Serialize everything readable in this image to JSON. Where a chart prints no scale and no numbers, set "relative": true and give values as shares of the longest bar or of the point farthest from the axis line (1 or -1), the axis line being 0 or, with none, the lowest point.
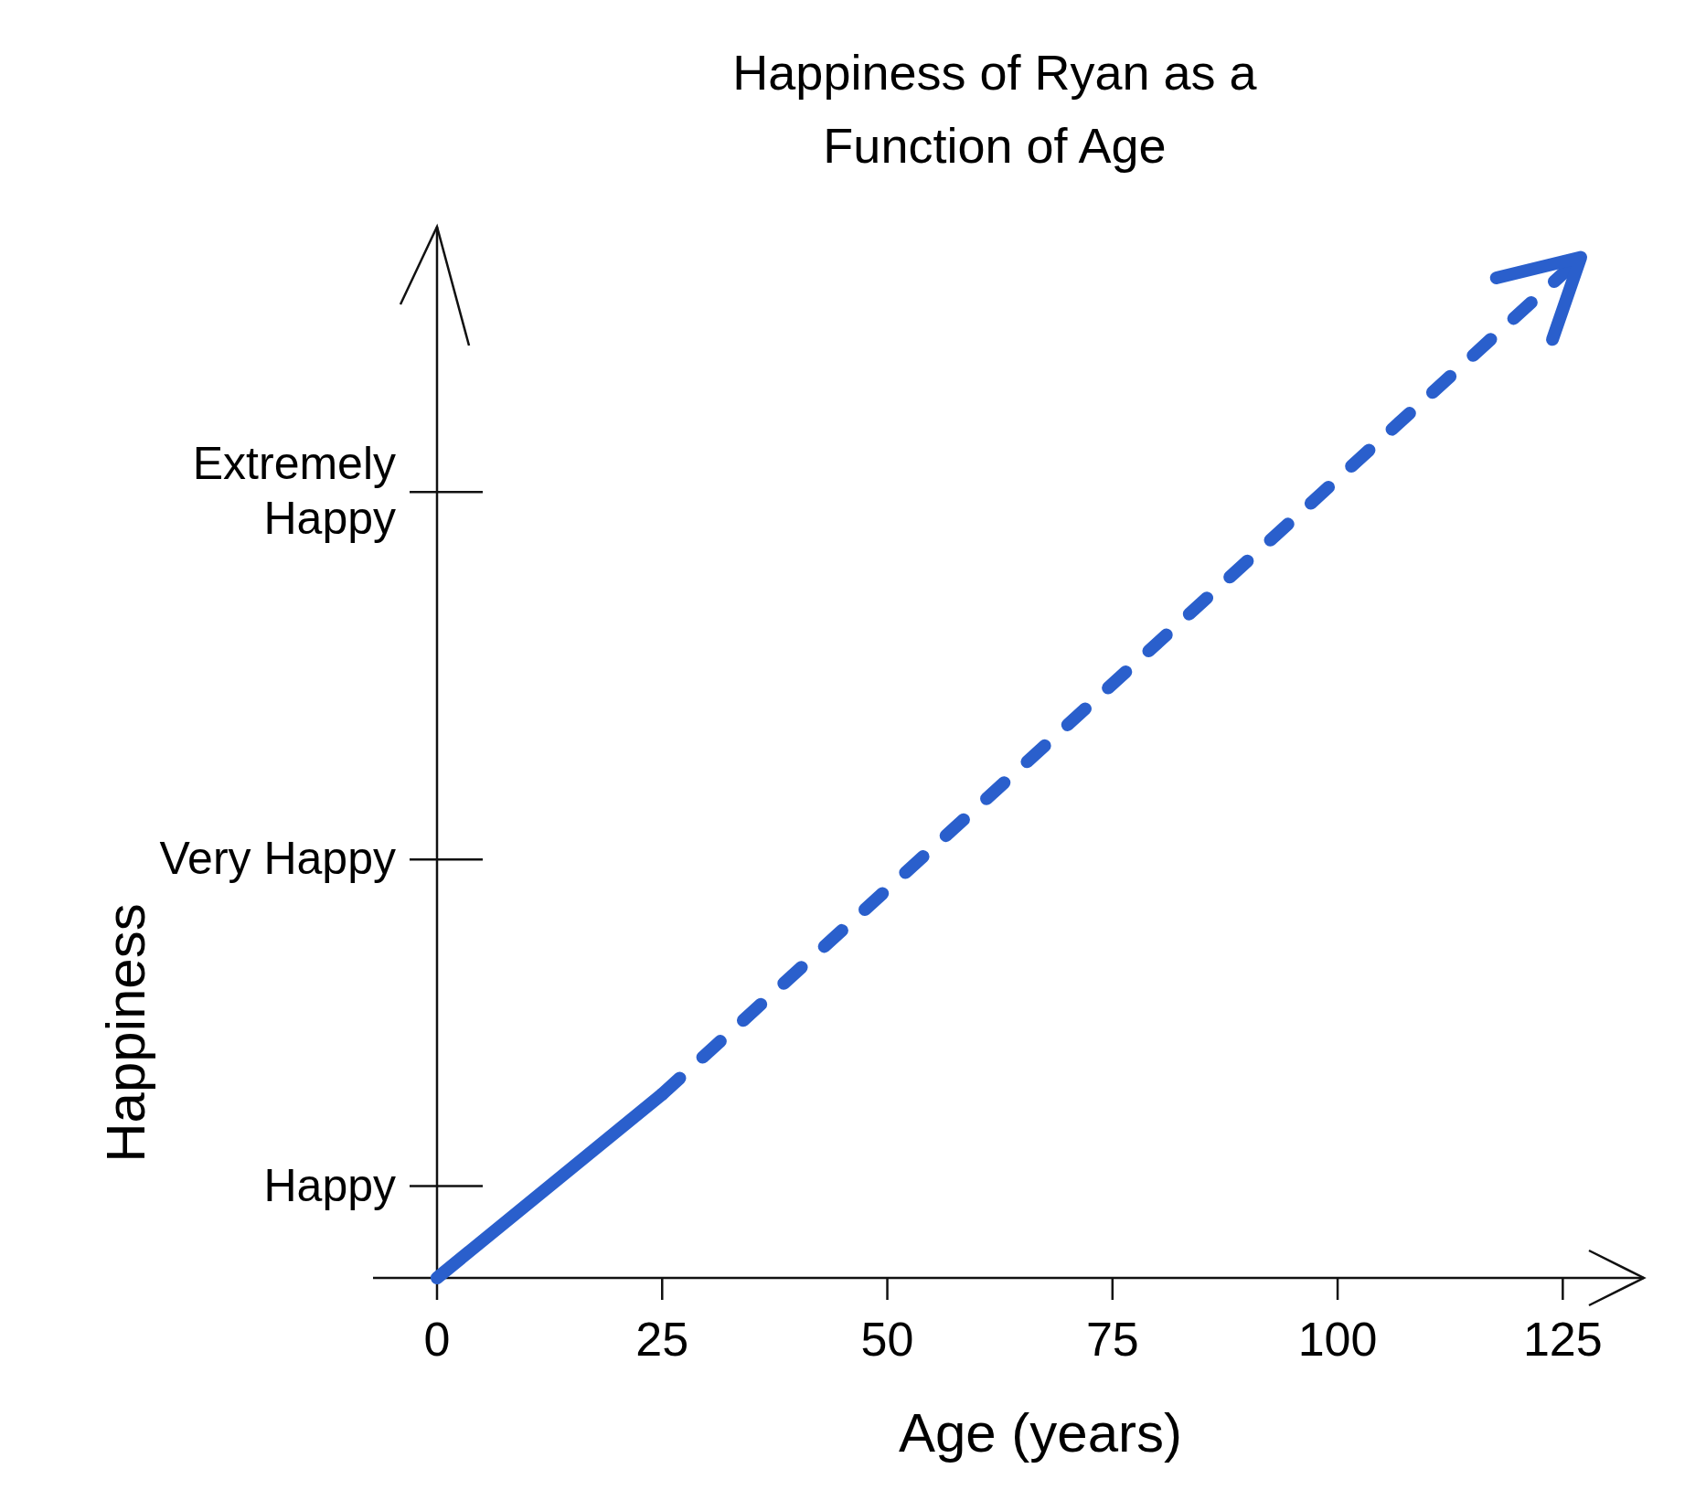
{
  "chart_data": {
    "type": "line",
    "title": "Happiness of Ryan as a Function of Age",
    "xlabel": "Age (years)",
    "ylabel": "Happiness",
    "xlim": [
      0,
      134
    ],
    "xticks": [
      0,
      25,
      50,
      75,
      100,
      125
    ],
    "relative": true,
    "annotations": [
      "Happy",
      "Very Happy",
      "Extremely Happy"
    ],
    "series": [
      {
        "color": "#2a5fcc",
        "x": [
          0,
          25
        ],
        "values": [
          0,
          0.18
        ],
        "line_style": "solid"
      },
      {
        "color": "#2a5fcc",
        "x": [
          25,
          127
        ],
        "values": [
          0.18,
          1
        ],
        "line_style": "dashed"
      }
    ],
    "grid": false,
    "marker": "none"
  }
}
